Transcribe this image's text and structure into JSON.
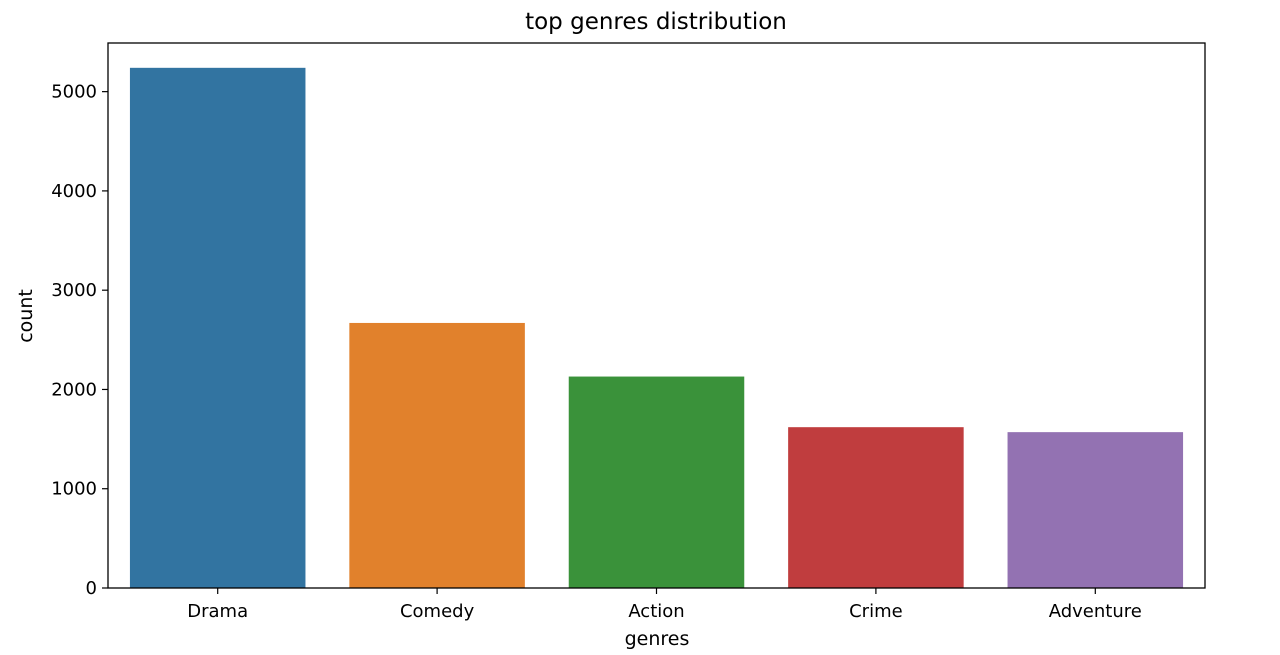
{
  "chart_data": {
    "type": "bar",
    "title": "top genres distribution",
    "xlabel": "genres",
    "ylabel": "count",
    "categories": [
      "Drama",
      "Comedy",
      "Action",
      "Crime",
      "Adventure"
    ],
    "values": [
      5240,
      2670,
      2130,
      1620,
      1570
    ],
    "colors": [
      "#3274a1",
      "#e1812c",
      "#3a923a",
      "#c03d3e",
      "#9372b2"
    ],
    "ylim": [
      0,
      5490
    ],
    "yticks": [
      0,
      1000,
      2000,
      3000,
      4000,
      5000
    ],
    "grid": false,
    "legend": "none"
  }
}
